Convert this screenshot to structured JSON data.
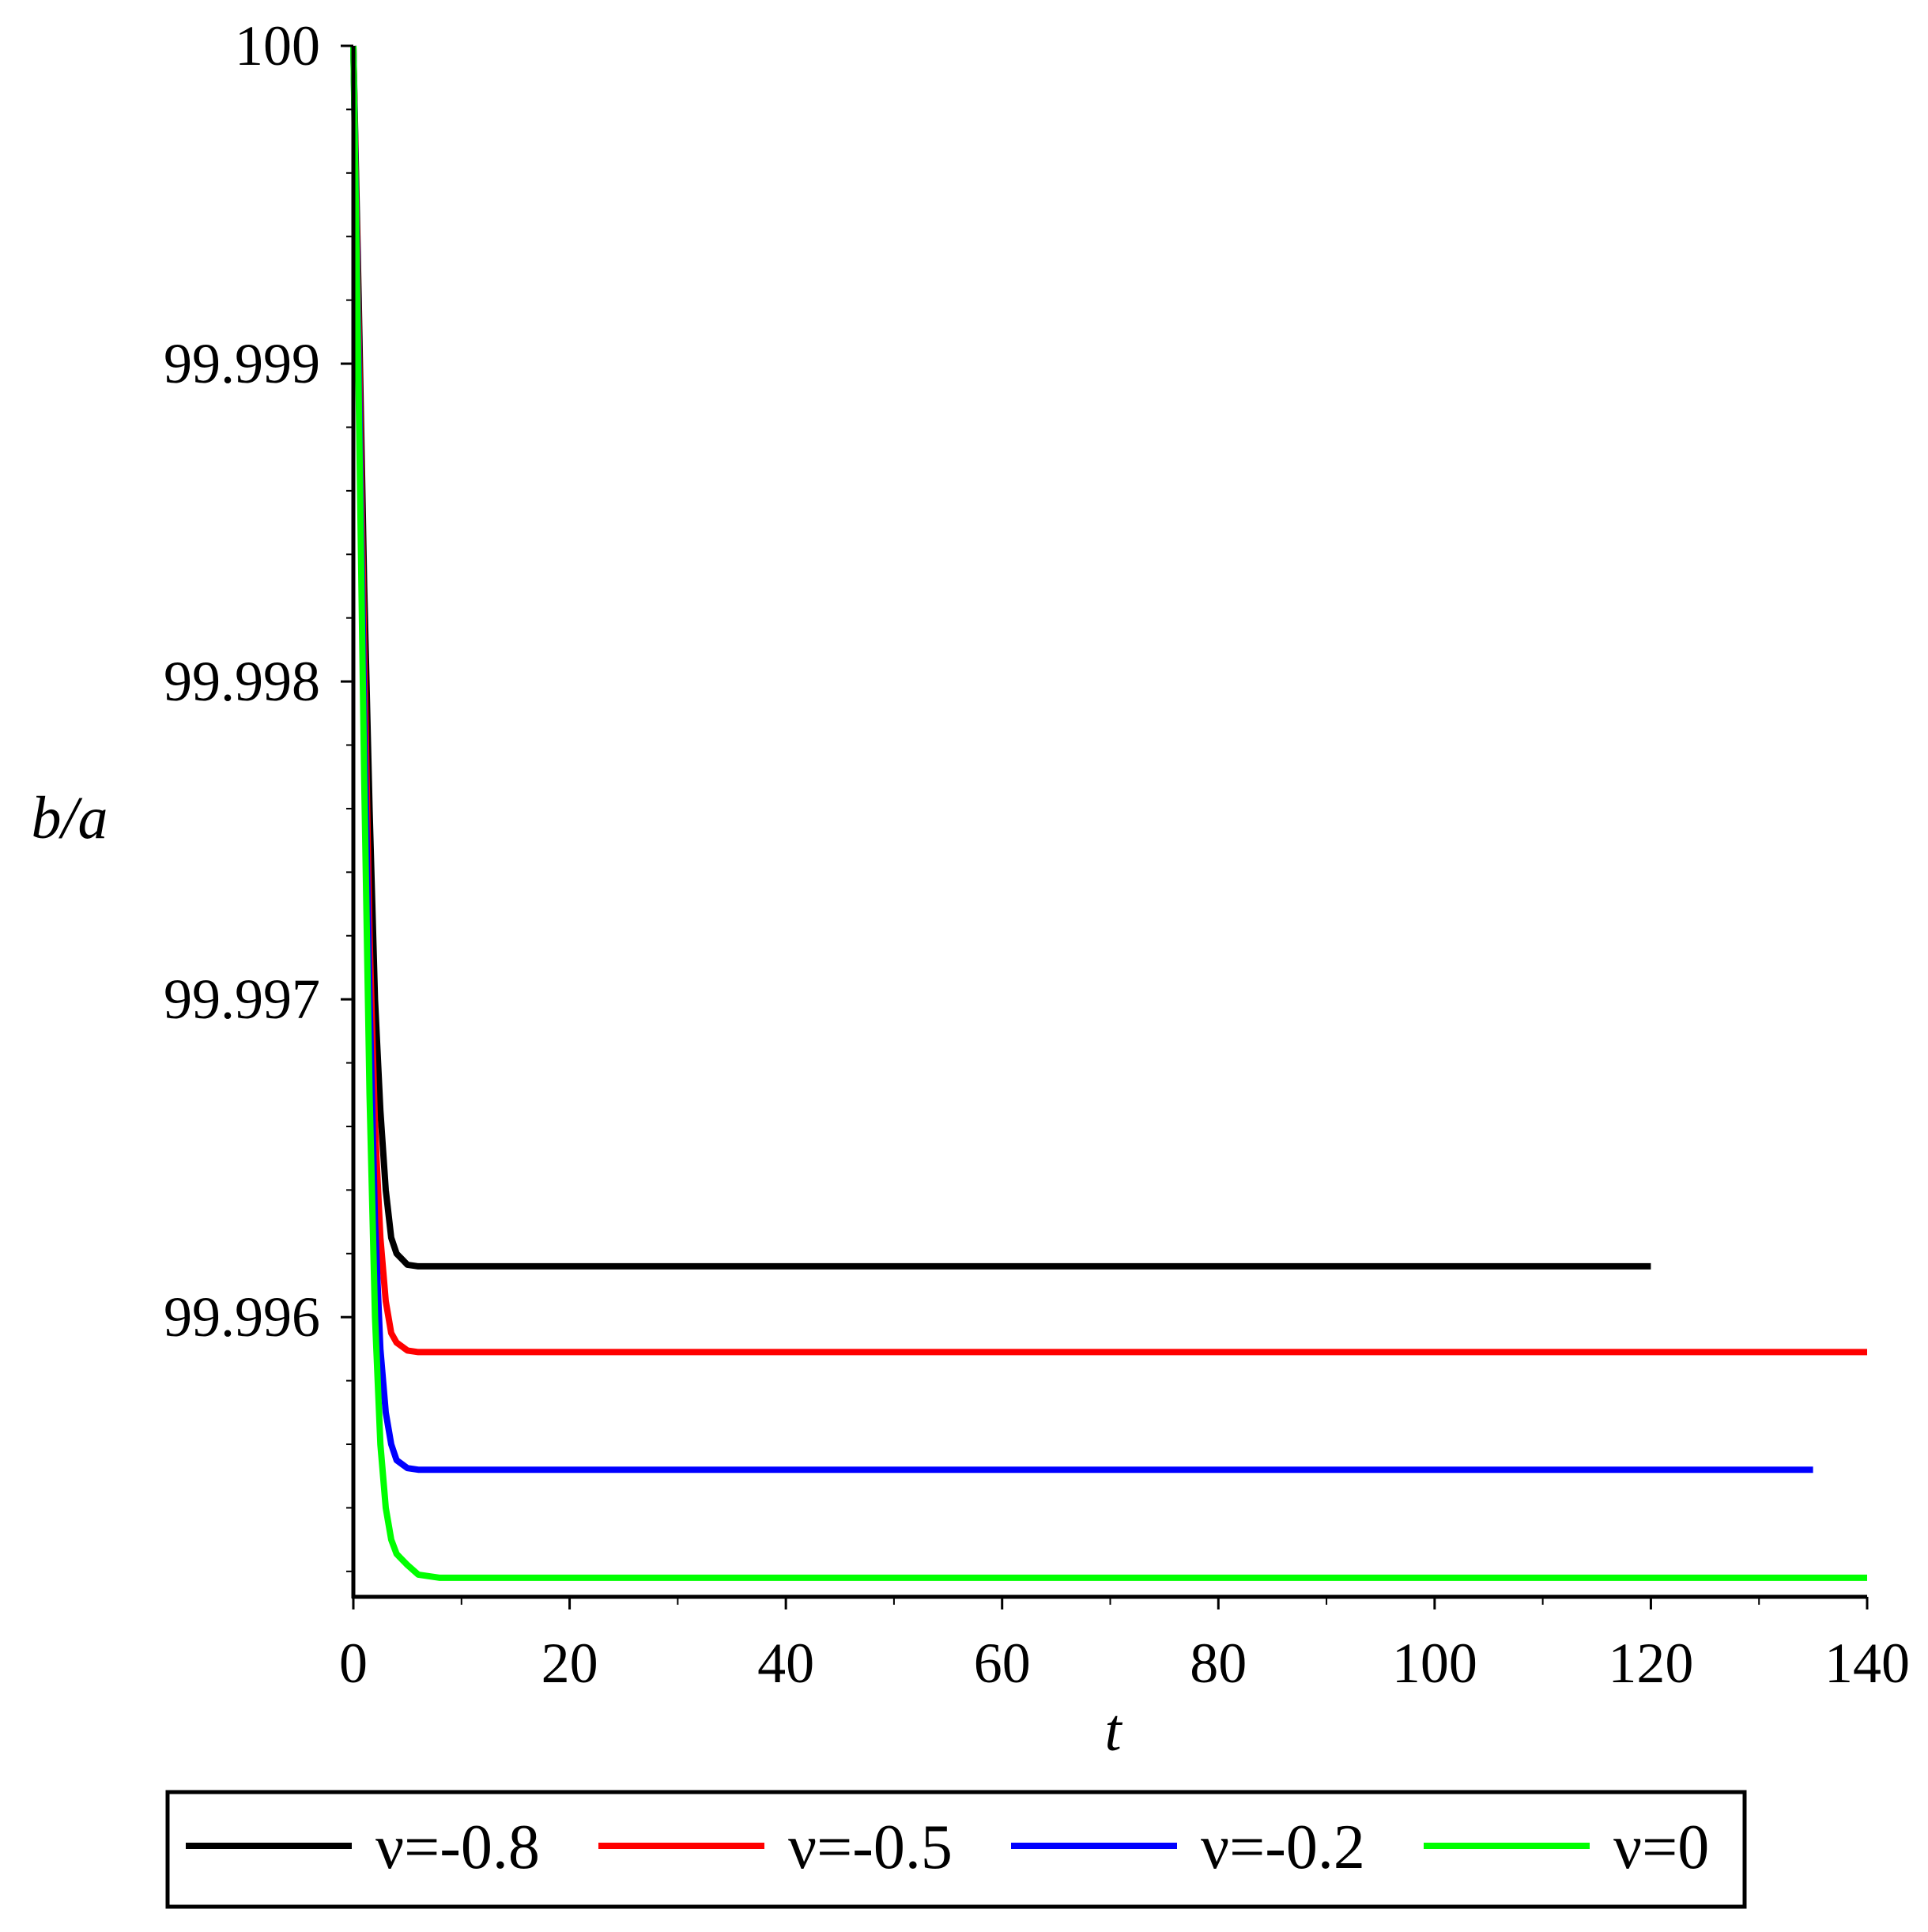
{
  "chart_data": {
    "type": "line",
    "title": "",
    "xlabel": "t",
    "ylabel": "b/a",
    "xlim": [
      0,
      140
    ],
    "ylim": [
      99.99512,
      100
    ],
    "xticks": [
      0,
      20,
      40,
      60,
      80,
      100,
      120,
      140
    ],
    "xtick_labels": [
      "0",
      "20",
      "40",
      "60",
      "80",
      "100",
      "120",
      "140"
    ],
    "yticks": [
      99.996,
      99.997,
      99.998,
      99.999,
      100
    ],
    "ytick_labels": [
      "99.996",
      "99.997",
      "99.998",
      "99.999",
      "100"
    ],
    "grid": false,
    "legend_position": "bottom",
    "series": [
      {
        "name": "ν=-0.8",
        "color": "#000000",
        "x": [
          0,
          0.5,
          1,
          1.5,
          2,
          2.5,
          3,
          3.5,
          4,
          5,
          6,
          8,
          10,
          20,
          40,
          60,
          80,
          100,
          120
        ],
        "y": [
          100,
          99.9992,
          99.9983,
          99.9976,
          99.997,
          99.99665,
          99.9964,
          99.99625,
          99.9962,
          99.996165,
          99.99616,
          99.99616,
          99.99616,
          99.99616,
          99.99616,
          99.99616,
          99.99616,
          99.99616,
          99.99616
        ]
      },
      {
        "name": "ν=-0.5",
        "color": "#ff0000",
        "x": [
          0,
          0.5,
          1,
          1.5,
          2,
          2.5,
          3,
          3.5,
          4,
          5,
          6,
          8,
          10,
          20,
          40,
          60,
          80,
          100,
          120,
          140
        ],
        "y": [
          100,
          99.9991,
          99.9981,
          99.9972,
          99.9966,
          99.99625,
          99.99605,
          99.99595,
          99.99592,
          99.995895,
          99.99589,
          99.99589,
          99.99589,
          99.99589,
          99.99589,
          99.99589,
          99.99589,
          99.99589,
          99.99589,
          99.99589
        ]
      },
      {
        "name": "ν=-0.2",
        "color": "#0000ff",
        "x": [
          0,
          0.5,
          1,
          1.5,
          2,
          2.5,
          3,
          3.5,
          4,
          5,
          6,
          8,
          10,
          20,
          40,
          60,
          80,
          100,
          120,
          135
        ],
        "y": [
          100,
          99.999,
          99.9979,
          99.997,
          99.9963,
          99.9959,
          99.9957,
          99.9956,
          99.99555,
          99.995525,
          99.99552,
          99.99552,
          99.99552,
          99.99552,
          99.99552,
          99.99552,
          99.99552,
          99.99552,
          99.99552,
          99.99552
        ]
      },
      {
        "name": "ν=0",
        "color": "#00ff00",
        "x": [
          0,
          0.5,
          1,
          1.5,
          2,
          2.5,
          3,
          3.5,
          4,
          5,
          6,
          8,
          10,
          20,
          40,
          60,
          80,
          100,
          120,
          140
        ],
        "y": [
          100,
          99.9989,
          99.9977,
          99.9967,
          99.996,
          99.9956,
          99.9954,
          99.9953,
          99.995255,
          99.99522,
          99.99519,
          99.99518,
          99.99518,
          99.99518,
          99.99518,
          99.99518,
          99.99518,
          99.99518,
          99.99518,
          99.99518
        ]
      }
    ]
  }
}
